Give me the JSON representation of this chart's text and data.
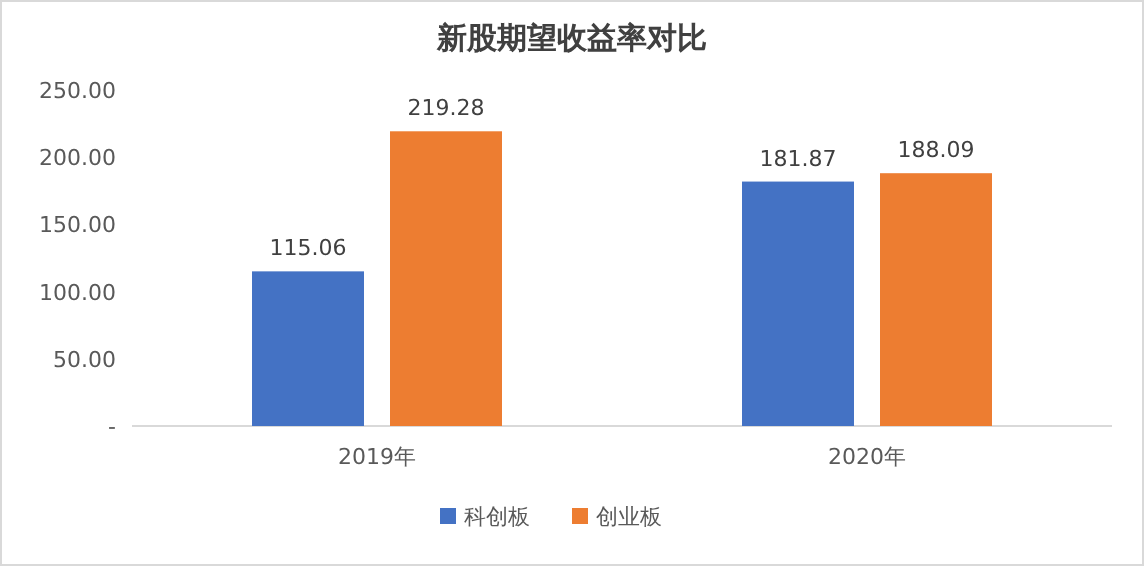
{
  "chart_data": {
    "type": "bar",
    "title": "新股期望收益率对比",
    "categories": [
      "2019年",
      "2020年"
    ],
    "series": [
      {
        "name": "科创板",
        "color": "#4472c4",
        "values": [
          115.06,
          181.87
        ]
      },
      {
        "name": "创业板",
        "color": "#ed7d31",
        "values": [
          219.28,
          188.09
        ]
      }
    ],
    "ylim": [
      0,
      250
    ],
    "yticks": [
      {
        "value": 0,
        "label": "-"
      },
      {
        "value": 50,
        "label": "50.00"
      },
      {
        "value": 100,
        "label": "100.00"
      },
      {
        "value": 150,
        "label": "150.00"
      },
      {
        "value": 200,
        "label": "200.00"
      },
      {
        "value": 250,
        "label": "250.00"
      }
    ],
    "data_labels": true,
    "grid": false,
    "legend": "bottom"
  }
}
